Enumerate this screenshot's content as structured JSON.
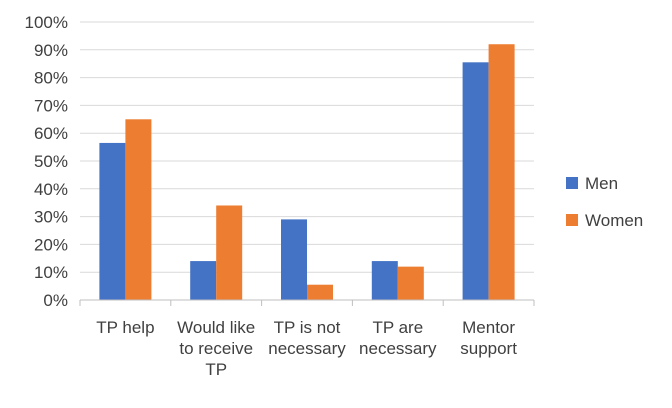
{
  "chart_data": {
    "type": "bar",
    "categories": [
      [
        "TP help"
      ],
      [
        "Would like",
        "to receive",
        "TP"
      ],
      [
        "TP is not",
        "necessary"
      ],
      [
        "TP are",
        "necessary"
      ],
      [
        "Mentor",
        "support"
      ]
    ],
    "series": [
      {
        "name": "Men",
        "color": "#4472c4",
        "values": [
          56.5,
          14,
          29,
          14,
          85.5
        ]
      },
      {
        "name": "Women",
        "color": "#ed7d31",
        "values": [
          65,
          34,
          5.5,
          12,
          92
        ]
      }
    ],
    "yticks": [
      "0%",
      "10%",
      "20%",
      "30%",
      "40%",
      "50%",
      "60%",
      "70%",
      "80%",
      "90%",
      "100%"
    ],
    "ylim": [
      0,
      100
    ],
    "grid": true,
    "legend_position": "right"
  }
}
